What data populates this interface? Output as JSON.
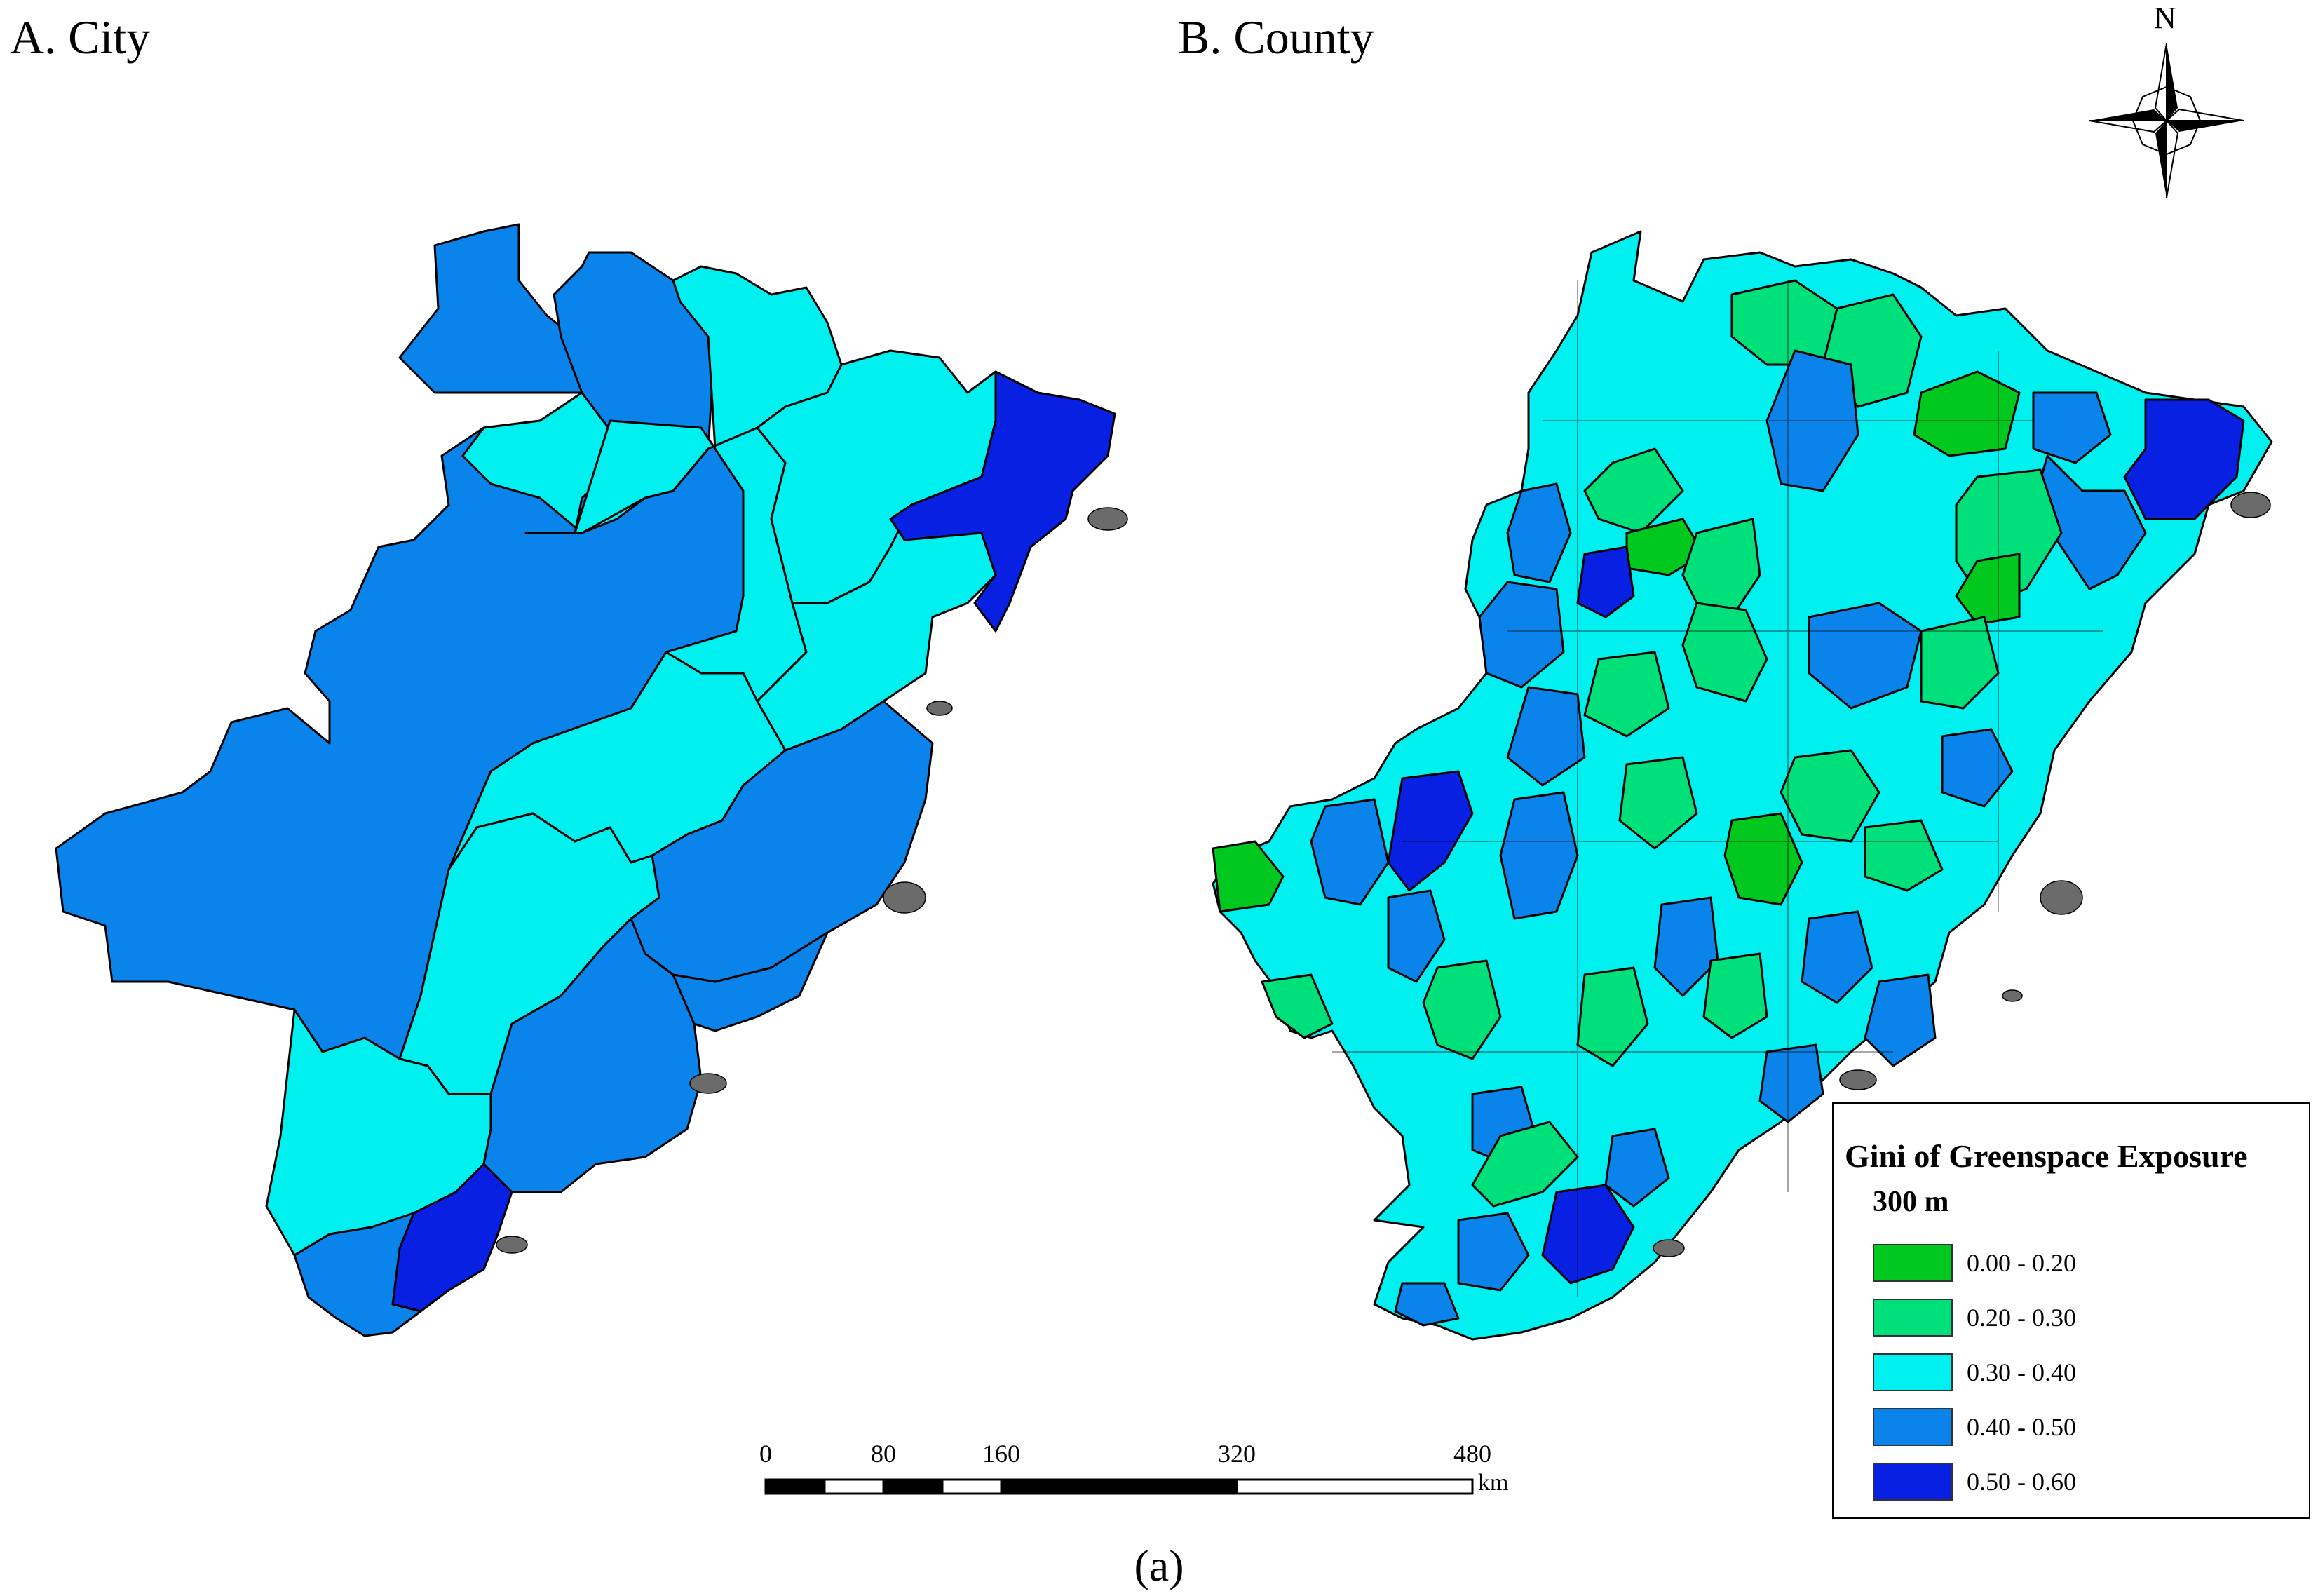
{
  "panels": {
    "city": {
      "title": "A. City"
    },
    "county": {
      "title": "B. County"
    }
  },
  "north_arrow": {
    "label": "N",
    "icon": "north-arrow-icon"
  },
  "scale_bar": {
    "ticks": [
      "0",
      "80",
      "160",
      "320",
      "480"
    ],
    "tick_values": [
      0,
      80,
      160,
      320,
      480
    ],
    "unit": "km"
  },
  "legend": {
    "title": "Gini of Greenspace Exposure",
    "subtitle": "300 m",
    "classes": [
      {
        "label": "0.00 - 0.20",
        "color": "#00c81e"
      },
      {
        "label": "0.20 - 0.30",
        "color": "#00e07a"
      },
      {
        "label": "0.30 - 0.40",
        "color": "#00f0f0"
      },
      {
        "label": "0.40 - 0.50",
        "color": "#0a84ea"
      },
      {
        "label": "0.50 - 0.60",
        "color": "#0720e2"
      }
    ]
  },
  "figure_label": "(a)"
}
